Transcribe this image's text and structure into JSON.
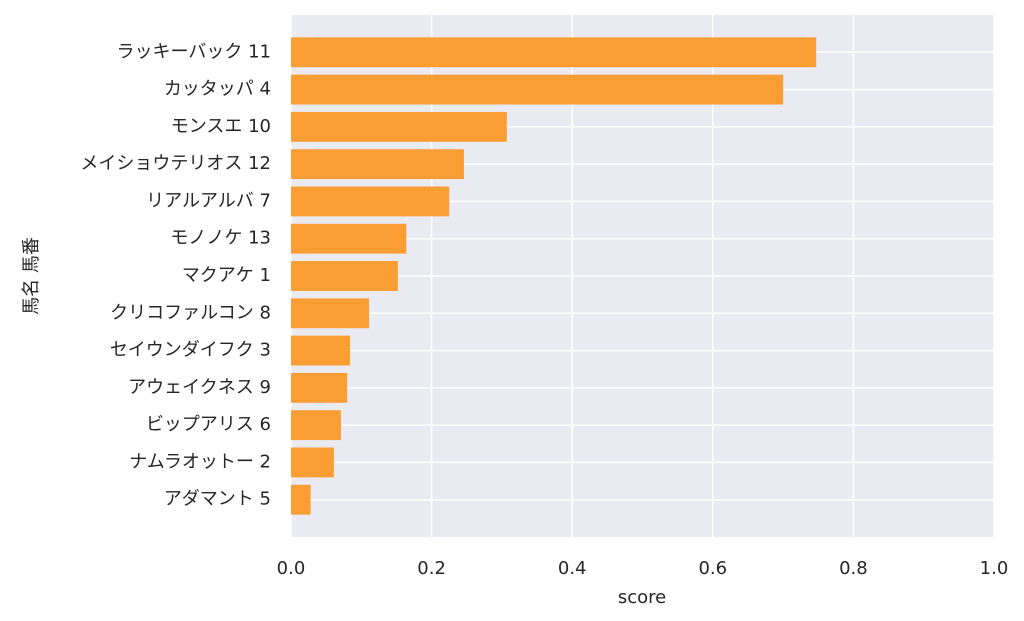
{
  "chart_data": {
    "type": "barh",
    "x_label": "score",
    "y_label": "馬名 馬番",
    "categories": [
      "ラッキーバック 11",
      "カッタッパ 4",
      "モンスエ 10",
      "メイショウテリオス 12",
      "リアルアルバ 7",
      "モノノケ 13",
      "マクアケ 1",
      "クリコファルコン 8",
      "セイウンダイフク 3",
      "アウェイクネス 9",
      "ビップアリス 6",
      "ナムラオットー 2",
      "アダマント 5"
    ],
    "values": [
      0.747,
      0.7,
      0.307,
      0.246,
      0.225,
      0.164,
      0.152,
      0.111,
      0.084,
      0.08,
      0.071,
      0.061,
      0.028
    ],
    "color": "#fa9d33",
    "xlim": [
      0,
      1
    ],
    "xticks": [
      {
        "value": 0,
        "label": "0.0"
      },
      0.2,
      0.4,
      0.6,
      0.8,
      {
        "value": 1,
        "label": "1.0"
      }
    ],
    "grid": true
  }
}
